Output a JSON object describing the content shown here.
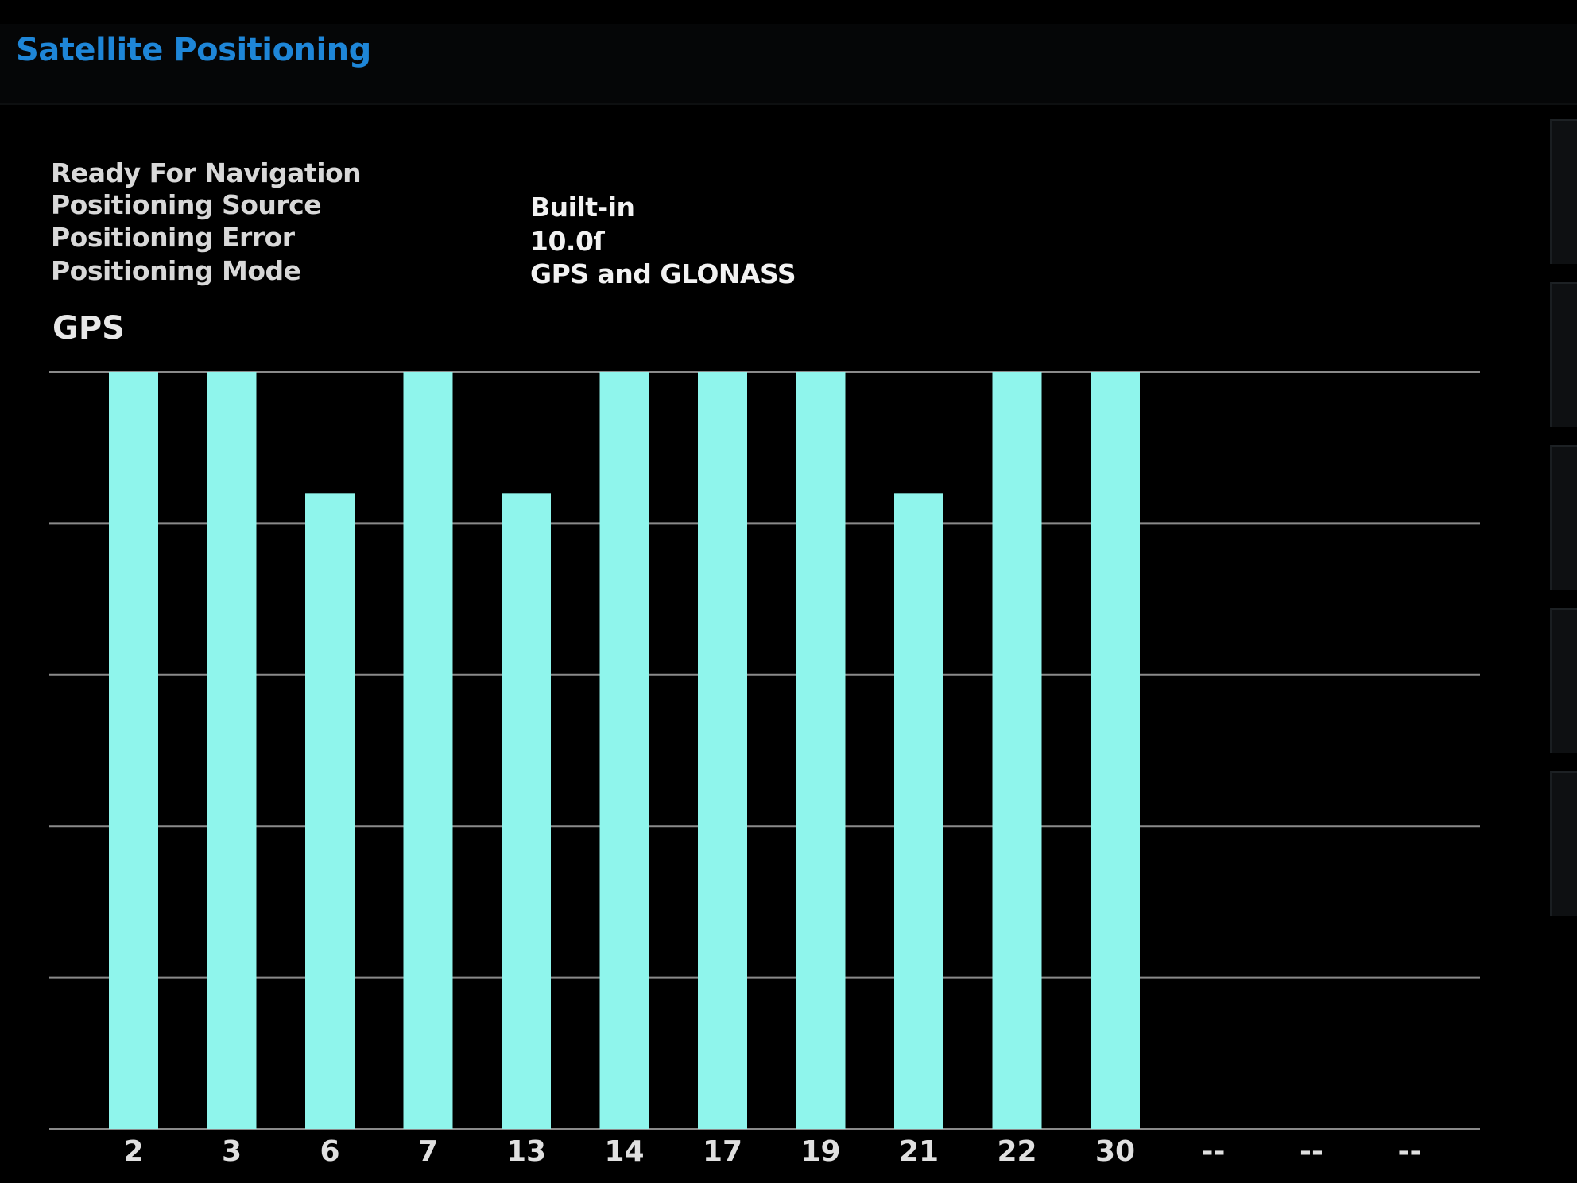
{
  "app": {
    "title": "Satellite Positioning"
  },
  "status": {
    "label": "Ready For Navigation"
  },
  "info": [
    {
      "label": "Positioning Source",
      "value": "Built-in"
    },
    {
      "label": "Positioning Error",
      "value": "10.0ſ"
    },
    {
      "label": "Positioning Mode",
      "value": "GPS and GLONASS"
    }
  ],
  "section": {
    "title": "GPS"
  },
  "colors": {
    "bar": "#8ff5ec",
    "title": "#1e86d8",
    "grid": "#8a8a8a"
  },
  "chart_data": {
    "type": "bar",
    "categories": [
      "2",
      "3",
      "6",
      "7",
      "13",
      "14",
      "17",
      "19",
      "21",
      "22",
      "30",
      "--",
      "--",
      "--"
    ],
    "series": [
      {
        "values": [
          50,
          50,
          42,
          50,
          42,
          50,
          50,
          50,
          42,
          50,
          50,
          null,
          null,
          null
        ]
      }
    ],
    "ylim": [
      0,
      50
    ],
    "grid": true,
    "gridlines": 6
  }
}
